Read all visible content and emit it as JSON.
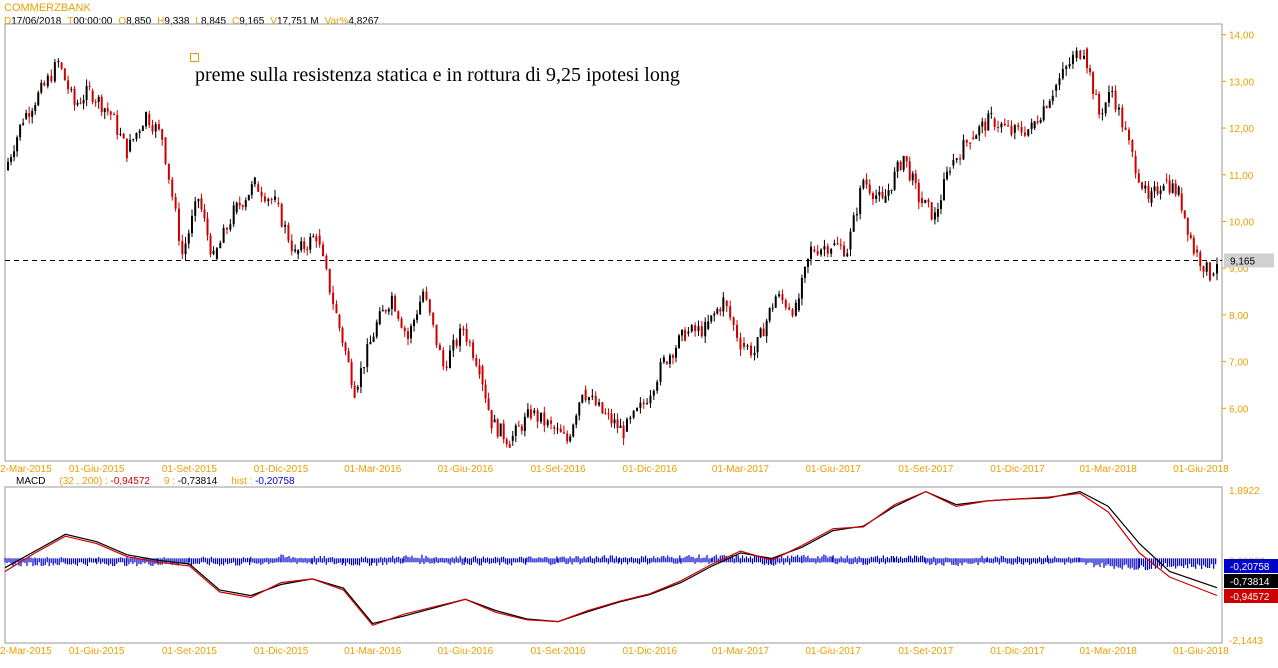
{
  "header": {
    "symbol": "COMMERZBANK",
    "ohlc": [
      {
        "k": "D",
        "v": "17/06/2018"
      },
      {
        "k": "T",
        "v": "00:00:00"
      },
      {
        "k": "O",
        "v": "8,850"
      },
      {
        "k": "H",
        "v": "9,338"
      },
      {
        "k": "L",
        "v": "8,845"
      },
      {
        "k": "C",
        "v": "9,165"
      },
      {
        "k": "V",
        "v": "17,751 M"
      },
      {
        "k": "Var%",
        "v": "4,8267"
      }
    ]
  },
  "annotation": "preme sulla resistenza statica e in rottura di 9,25 ipotesi long",
  "macd_header": {
    "name": "MACD",
    "params": "(32 , 200) :",
    "macd_value": "-0,94572",
    "signal_label": "9 :",
    "signal_value": "-0,73814",
    "hist_label": "hist :",
    "hist_value": "-0,20758"
  },
  "colors": {
    "accent": "#e8a000",
    "up": "#000000",
    "down": "#cc0000",
    "macd_line": "#cc0000",
    "signal_line": "#000000",
    "histogram": "#0000cc"
  },
  "chart_data": [
    {
      "type": "candlestick",
      "title": "",
      "x_ticks": [
        "2-Mar-2015",
        "01-Giu-2015",
        "01-Set-2015",
        "01-Dic-2015",
        "01-Mar-2016",
        "01-Giu-2016",
        "01-Set-2016",
        "01-Dic-2016",
        "01-Mar-2017",
        "01-Giu-2017",
        "01-Set-2017",
        "01-Dic-2017",
        "01-Mar-2018",
        "01-Giu-2018"
      ],
      "y_ticks": [
        "6,00",
        "7,00",
        "8,00",
        "9,00",
        "10,00",
        "11,00",
        "12,00",
        "13,00",
        "14,00"
      ],
      "ylim": [
        5.0,
        14.1
      ],
      "reference_line": {
        "value": 9.165,
        "label": "9,165",
        "style": "dashed"
      },
      "close_path": [
        [
          "2015-03-02",
          11.1
        ],
        [
          "2015-03-20",
          12.2
        ],
        [
          "2015-04-10",
          12.9
        ],
        [
          "2015-04-24",
          13.4
        ],
        [
          "2015-05-10",
          12.5
        ],
        [
          "2015-05-25",
          12.8
        ],
        [
          "2015-06-15",
          12.3
        ],
        [
          "2015-07-01",
          11.5
        ],
        [
          "2015-07-20",
          12.3
        ],
        [
          "2015-08-05",
          11.8
        ],
        [
          "2015-08-25",
          9.3
        ],
        [
          "2015-09-10",
          10.5
        ],
        [
          "2015-09-25",
          9.2
        ],
        [
          "2015-10-15",
          10.2
        ],
        [
          "2015-11-05",
          10.8
        ],
        [
          "2015-11-25",
          10.4
        ],
        [
          "2015-12-15",
          9.3
        ],
        [
          "2016-01-05",
          9.7
        ],
        [
          "2016-01-25",
          8.0
        ],
        [
          "2016-02-12",
          6.4
        ],
        [
          "2016-03-05",
          7.8
        ],
        [
          "2016-03-20",
          8.4
        ],
        [
          "2016-04-05",
          7.5
        ],
        [
          "2016-04-20",
          8.5
        ],
        [
          "2016-05-10",
          6.9
        ],
        [
          "2016-05-30",
          7.7
        ],
        [
          "2016-06-15",
          6.9
        ],
        [
          "2016-06-27",
          5.7
        ],
        [
          "2016-07-15",
          5.3
        ],
        [
          "2016-08-05",
          5.9
        ],
        [
          "2016-08-25",
          5.6
        ],
        [
          "2016-09-10",
          5.3
        ],
        [
          "2016-09-25",
          6.4
        ],
        [
          "2016-10-15",
          5.9
        ],
        [
          "2016-11-05",
          5.5
        ],
        [
          "2016-11-25",
          6.1
        ],
        [
          "2016-12-15",
          7.0
        ],
        [
          "2017-01-05",
          7.6
        ],
        [
          "2017-01-25",
          7.7
        ],
        [
          "2017-02-12",
          8.3
        ],
        [
          "2017-03-01",
          7.4
        ],
        [
          "2017-03-15",
          7.2
        ],
        [
          "2017-04-05",
          8.4
        ],
        [
          "2017-04-25",
          8.1
        ],
        [
          "2017-05-10",
          9.4
        ],
        [
          "2017-05-30",
          9.5
        ],
        [
          "2017-06-15",
          9.4
        ],
        [
          "2017-07-01",
          10.9
        ],
        [
          "2017-07-20",
          10.4
        ],
        [
          "2017-08-10",
          11.4
        ],
        [
          "2017-08-25",
          10.5
        ],
        [
          "2017-09-10",
          10.1
        ],
        [
          "2017-09-25",
          11.2
        ],
        [
          "2017-10-15",
          11.8
        ],
        [
          "2017-11-05",
          12.2
        ],
        [
          "2017-11-25",
          11.9
        ],
        [
          "2017-12-15",
          12.0
        ],
        [
          "2018-01-05",
          12.8
        ],
        [
          "2018-01-25",
          13.5
        ],
        [
          "2018-02-05",
          13.7
        ],
        [
          "2018-02-20",
          12.3
        ],
        [
          "2018-03-05",
          12.8
        ],
        [
          "2018-03-25",
          11.4
        ],
        [
          "2018-04-10",
          10.4
        ],
        [
          "2018-04-25",
          10.9
        ],
        [
          "2018-05-10",
          10.6
        ],
        [
          "2018-05-25",
          9.4
        ],
        [
          "2018-06-10",
          8.85
        ],
        [
          "2018-06-17",
          9.165
        ]
      ]
    },
    {
      "type": "line",
      "title": "",
      "x_ticks": [
        "2-Mar-2015",
        "01-Giu-2015",
        "01-Set-2015",
        "01-Dic-2015",
        "01-Mar-2016",
        "01-Giu-2016",
        "01-Set-2016",
        "01-Dic-2016",
        "01-Mar-2017",
        "01-Giu-2017",
        "01-Set-2017",
        "01-Dic-2017",
        "01-Mar-2018",
        "01-Giu-2018"
      ],
      "y_ticks": [
        "1,8922",
        "0,00000",
        "-2,1443"
      ],
      "ylim": [
        -2.1443,
        1.8922
      ],
      "series": [
        {
          "name": "MACD",
          "color": "#cc0000",
          "points": [
            [
              "2015-03-02",
              -0.3
            ],
            [
              "2015-04-01",
              0.2
            ],
            [
              "2015-05-01",
              0.65
            ],
            [
              "2015-06-01",
              0.45
            ],
            [
              "2015-07-01",
              0.1
            ],
            [
              "2015-08-01",
              -0.05
            ],
            [
              "2015-09-01",
              -0.15
            ],
            [
              "2015-10-01",
              -0.85
            ],
            [
              "2015-11-01",
              -1.0
            ],
            [
              "2015-12-01",
              -0.6
            ],
            [
              "2016-01-01",
              -0.5
            ],
            [
              "2016-02-01",
              -0.8
            ],
            [
              "2016-03-01",
              -1.75
            ],
            [
              "2016-04-01",
              -1.45
            ],
            [
              "2016-05-01",
              -1.25
            ],
            [
              "2016-06-01",
              -1.05
            ],
            [
              "2016-07-01",
              -1.4
            ],
            [
              "2016-08-01",
              -1.6
            ],
            [
              "2016-09-01",
              -1.65
            ],
            [
              "2016-10-01",
              -1.35
            ],
            [
              "2016-11-01",
              -1.1
            ],
            [
              "2016-12-01",
              -0.9
            ],
            [
              "2017-01-01",
              -0.55
            ],
            [
              "2017-02-01",
              -0.1
            ],
            [
              "2017-03-01",
              0.25
            ],
            [
              "2017-04-01",
              0.0
            ],
            [
              "2017-05-01",
              0.4
            ],
            [
              "2017-06-01",
              0.85
            ],
            [
              "2017-07-01",
              0.9
            ],
            [
              "2017-08-01",
              1.5
            ],
            [
              "2017-09-01",
              1.85
            ],
            [
              "2017-10-01",
              1.45
            ],
            [
              "2017-11-01",
              1.6
            ],
            [
              "2017-12-01",
              1.65
            ],
            [
              "2018-01-01",
              1.7
            ],
            [
              "2018-02-01",
              1.8
            ],
            [
              "2018-03-01",
              1.3
            ],
            [
              "2018-04-01",
              0.2
            ],
            [
              "2018-05-01",
              -0.45
            ],
            [
              "2018-06-17",
              -0.94572
            ]
          ]
        },
        {
          "name": "9",
          "color": "#000000",
          "points": [
            [
              "2015-03-02",
              -0.2
            ],
            [
              "2015-04-01",
              0.25
            ],
            [
              "2015-05-01",
              0.7
            ],
            [
              "2015-06-01",
              0.5
            ],
            [
              "2015-07-01",
              0.15
            ],
            [
              "2015-08-01",
              0.0
            ],
            [
              "2015-09-01",
              -0.1
            ],
            [
              "2015-10-01",
              -0.8
            ],
            [
              "2015-11-01",
              -0.95
            ],
            [
              "2015-12-01",
              -0.65
            ],
            [
              "2016-01-01",
              -0.5
            ],
            [
              "2016-02-01",
              -0.75
            ],
            [
              "2016-03-01",
              -1.7
            ],
            [
              "2016-04-01",
              -1.5
            ],
            [
              "2016-05-01",
              -1.28
            ],
            [
              "2016-06-01",
              -1.05
            ],
            [
              "2016-07-01",
              -1.35
            ],
            [
              "2016-08-01",
              -1.58
            ],
            [
              "2016-09-01",
              -1.65
            ],
            [
              "2016-10-01",
              -1.38
            ],
            [
              "2016-11-01",
              -1.12
            ],
            [
              "2016-12-01",
              -0.92
            ],
            [
              "2017-01-01",
              -0.6
            ],
            [
              "2017-02-01",
              -0.15
            ],
            [
              "2017-03-01",
              0.2
            ],
            [
              "2017-04-01",
              0.05
            ],
            [
              "2017-05-01",
              0.35
            ],
            [
              "2017-06-01",
              0.8
            ],
            [
              "2017-07-01",
              0.92
            ],
            [
              "2017-08-01",
              1.45
            ],
            [
              "2017-09-01",
              1.85
            ],
            [
              "2017-10-01",
              1.5
            ],
            [
              "2017-11-01",
              1.6
            ],
            [
              "2017-12-01",
              1.65
            ],
            [
              "2018-01-01",
              1.68
            ],
            [
              "2018-02-01",
              1.85
            ],
            [
              "2018-03-01",
              1.45
            ],
            [
              "2018-04-01",
              0.45
            ],
            [
              "2018-05-01",
              -0.3
            ],
            [
              "2018-06-17",
              -0.73814
            ]
          ]
        },
        {
          "name": "hist",
          "color": "#0000cc",
          "last": -0.20758
        }
      ],
      "value_badges": [
        {
          "label": "-0,20758",
          "bg": "#0000cc",
          "fg": "#ffffff"
        },
        {
          "label": "-0,73814",
          "bg": "#000000",
          "fg": "#ffffff"
        },
        {
          "label": "-0,94572",
          "bg": "#cc0000",
          "fg": "#ffffff"
        }
      ]
    }
  ]
}
